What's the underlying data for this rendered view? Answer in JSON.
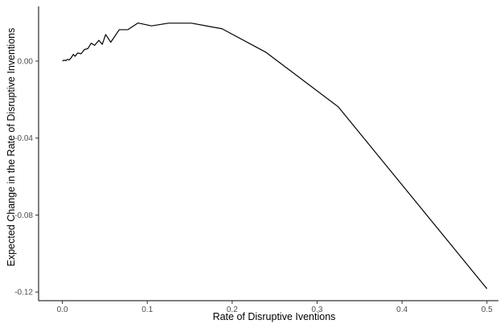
{
  "chart_data": {
    "type": "line",
    "title": "",
    "xlabel": "Rate of Disruptive Iventions",
    "ylabel": "Expected Change in the Rate of Disruptive Inventions",
    "xlim": [
      -0.028,
      0.5135
    ],
    "ylim": [
      -0.1245,
      0.0284
    ],
    "x_ticks": [
      0.0,
      0.1,
      0.2,
      0.3,
      0.4,
      0.5
    ],
    "x_tick_labels": [
      "0.0",
      "0.1",
      "0.2",
      "0.3",
      "0.4",
      "0.5"
    ],
    "y_ticks": [
      0.0,
      -0.04,
      -0.08,
      -0.12
    ],
    "y_tick_labels": [
      "0.00",
      "-0.04",
      "-0.08",
      "-0.12"
    ],
    "grid": false,
    "legend": "none",
    "line_color": "#000000",
    "axis_color": "#000000",
    "series": [
      {
        "x": [
          0.0,
          0.002,
          0.004,
          0.006,
          0.008,
          0.01,
          0.013,
          0.015,
          0.018,
          0.022,
          0.026,
          0.03,
          0.034,
          0.038,
          0.043,
          0.047,
          0.051,
          0.057,
          0.067,
          0.077,
          0.089,
          0.105,
          0.125,
          0.152,
          0.188,
          0.24,
          0.325,
          0.5
        ],
        "y": [
          0.0,
          0.0005,
          0.0002,
          0.0009,
          0.0006,
          0.0015,
          0.0035,
          0.0025,
          0.0042,
          0.0038,
          0.006,
          0.0065,
          0.0093,
          0.0082,
          0.0108,
          0.0087,
          0.0138,
          0.0098,
          0.0163,
          0.0163,
          0.0198,
          0.0183,
          0.0197,
          0.0197,
          0.0168,
          0.0045,
          -0.0238,
          -0.1183
        ]
      }
    ]
  }
}
